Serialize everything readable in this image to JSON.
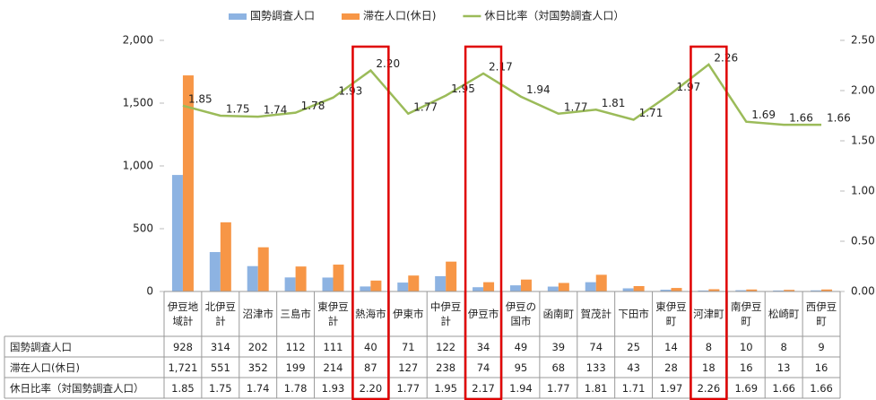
{
  "chart_data": {
    "type": "bar_line_table",
    "categories": [
      "伊豆地域計",
      "北伊豆計",
      "沼津市",
      "三島市",
      "東伊豆計",
      "熱海市",
      "伊東市",
      "中伊豆計",
      "伊豆市",
      "伊豆の国市",
      "函南町",
      "賀茂計",
      "下田市",
      "東伊豆町",
      "河津町",
      "南伊豆町",
      "松崎町",
      "西伊豆町"
    ],
    "series": [
      {
        "name": "国勢調査人口",
        "color": "#8db3e2",
        "type": "bar",
        "values": [
          928,
          314,
          202,
          112,
          111,
          40,
          71,
          122,
          34,
          49,
          39,
          74,
          25,
          14,
          8,
          10,
          8,
          9
        ]
      },
      {
        "name": "滞在人口(休日)",
        "color": "#f79646",
        "type": "bar",
        "values": [
          1721,
          551,
          352,
          199,
          214,
          87,
          127,
          238,
          74,
          95,
          68,
          133,
          43,
          28,
          18,
          16,
          13,
          16
        ],
        "value_labels": [
          "1,721",
          "551",
          "352",
          "199",
          "214",
          "87",
          "127",
          "238",
          "74",
          "95",
          "68",
          "133",
          "43",
          "28",
          "18",
          "16",
          "13",
          "16"
        ]
      },
      {
        "name": "休日比率（対国勢調査人口）",
        "color": "#9bbb59",
        "type": "line",
        "axis": "y2",
        "values": [
          1.85,
          1.75,
          1.74,
          1.78,
          1.93,
          2.2,
          1.77,
          1.95,
          2.17,
          1.94,
          1.77,
          1.81,
          1.71,
          1.97,
          2.26,
          1.69,
          1.66,
          1.66
        ],
        "value_labels": [
          "1.85",
          "1.75",
          "1.74",
          "1.78",
          "1.93",
          "2.20",
          "1.77",
          "1.95",
          "2.17",
          "1.94",
          "1.77",
          "1.81",
          "1.71",
          "1.97",
          "2.26",
          "1.69",
          "1.66",
          "1.66"
        ]
      }
    ],
    "ylim": [
      0,
      2000
    ],
    "yticks": [
      0,
      500,
      {
        "value": 1000,
        "label": "1,000"
      },
      {
        "value": 1500,
        "label": "1,500"
      },
      {
        "value": 2000,
        "label": "2,000"
      }
    ],
    "y2lim": [
      0,
      2.5
    ],
    "y2ticks": [
      {
        "value": 0,
        "label": "0.00"
      },
      {
        "value": 0.5,
        "label": "0.50"
      },
      {
        "value": 1,
        "label": "1.00"
      },
      {
        "value": 1.5,
        "label": "1.50"
      },
      {
        "value": 2,
        "label": "2.00"
      },
      {
        "value": 2.5,
        "label": "2.50"
      }
    ],
    "highlight": [
      5,
      8,
      14
    ],
    "highlight_color": "#e00000",
    "legend": "top"
  }
}
